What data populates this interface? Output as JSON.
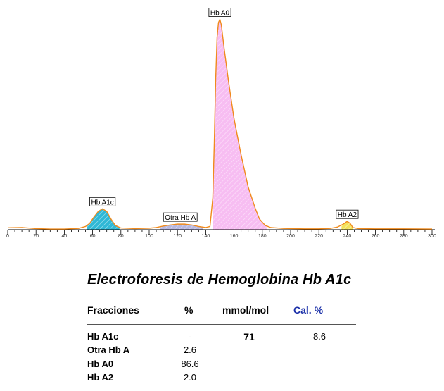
{
  "chart_data": {
    "type": "area",
    "title": "",
    "xlabel": "",
    "ylabel": "",
    "xlim": [
      0,
      300
    ],
    "ylim": [
      0,
      100
    ],
    "x_ticks": [
      0,
      20,
      40,
      60,
      80,
      100,
      120,
      140,
      160,
      180,
      200,
      220,
      240,
      260,
      280,
      300
    ],
    "curve": [
      [
        0,
        0.9
      ],
      [
        10,
        1.0
      ],
      [
        20,
        0.5
      ],
      [
        30,
        0.3
      ],
      [
        40,
        0.3
      ],
      [
        50,
        0.6
      ],
      [
        55,
        1.5
      ],
      [
        58,
        3.0
      ],
      [
        61,
        6.0
      ],
      [
        64,
        8.5
      ],
      [
        67,
        9.8
      ],
      [
        70,
        8.5
      ],
      [
        73,
        5.0
      ],
      [
        76,
        2.0
      ],
      [
        80,
        0.8
      ],
      [
        90,
        0.5
      ],
      [
        100,
        0.7
      ],
      [
        105,
        1.0
      ],
      [
        110,
        1.7
      ],
      [
        115,
        2.2
      ],
      [
        120,
        2.6
      ],
      [
        125,
        2.6
      ],
      [
        130,
        2.2
      ],
      [
        135,
        1.5
      ],
      [
        140,
        1.0
      ],
      [
        143,
        1.5
      ],
      [
        145,
        15
      ],
      [
        146,
        40
      ],
      [
        147,
        70
      ],
      [
        148,
        90
      ],
      [
        149,
        97
      ],
      [
        150,
        98.5
      ],
      [
        151,
        96
      ],
      [
        153,
        85
      ],
      [
        156,
        70
      ],
      [
        160,
        52
      ],
      [
        165,
        35
      ],
      [
        170,
        20
      ],
      [
        175,
        10
      ],
      [
        178,
        5
      ],
      [
        182,
        2
      ],
      [
        186,
        1.0
      ],
      [
        195,
        0.6
      ],
      [
        210,
        0.4
      ],
      [
        220,
        0.4
      ],
      [
        228,
        0.6
      ],
      [
        233,
        1.2
      ],
      [
        237,
        2.5
      ],
      [
        240,
        3.9
      ],
      [
        242,
        3.0
      ],
      [
        244,
        1.0
      ],
      [
        248,
        0.5
      ],
      [
        260,
        0.4
      ],
      [
        280,
        0.4
      ],
      [
        300,
        0.3
      ]
    ],
    "peaks": [
      {
        "label": "Hb A1c",
        "x_range": [
          56,
          79
        ],
        "fill": "#2fb8d6",
        "label_x": 67
      },
      {
        "label": "Otra Hb A",
        "x_range": [
          108,
          138
        ],
        "fill": "#b8b8e0",
        "label_x": 122
      },
      {
        "label": "Hb A0",
        "x_range": [
          145,
          183
        ],
        "fill": "#f7bdf2",
        "label_x": 150
      },
      {
        "label": "Hb A2",
        "x_range": [
          236,
          244
        ],
        "fill": "#f2e25a",
        "label_x": 240
      }
    ],
    "line_color": "#f08a1c"
  },
  "report": {
    "title": "Electroforesis de Hemoglobina Hb A1c",
    "headers": {
      "fracciones": "Fracciones",
      "percent": "%",
      "mmol": "mmol/mol",
      "cal": "Cal. %"
    },
    "rows": [
      {
        "name": "Hb A1c",
        "percent": "-",
        "mmol": "71",
        "cal": "8.6"
      },
      {
        "name": "Otra Hb A",
        "percent": "2.6",
        "mmol": "",
        "cal": ""
      },
      {
        "name": "Hb A0",
        "percent": "86.6",
        "mmol": "",
        "cal": ""
      },
      {
        "name": "Hb A2",
        "percent": "2.0",
        "mmol": "",
        "cal": ""
      }
    ]
  }
}
